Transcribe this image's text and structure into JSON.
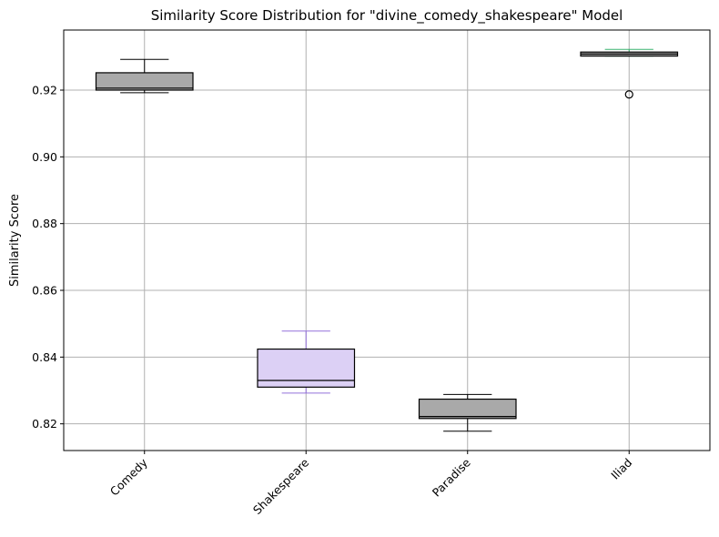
{
  "chart_data": {
    "type": "box",
    "title": "Similarity Score Distribution for \"divine_comedy_shakespeare\" Model",
    "ylabel": "Similarity Score",
    "xlabel": "",
    "ylim": [
      0.812,
      0.938
    ],
    "yticks": [
      0.82,
      0.84,
      0.86,
      0.88,
      0.9,
      0.92
    ],
    "ytick_labels": [
      "0.82",
      "0.84",
      "0.86",
      "0.88",
      "0.90",
      "0.92"
    ],
    "grid": true,
    "categories": [
      "Comedy",
      "Shakespeare",
      "Paradise",
      "Iliad"
    ],
    "boxes": [
      {
        "category": "Comedy",
        "whislo": 0.9192,
        "q1": 0.92,
        "med": 0.9206,
        "q3": 0.9252,
        "whishi": 0.9292,
        "fliers": [],
        "fill": "#a9a9a9",
        "edge": "#000000",
        "whisker_color": "#000000"
      },
      {
        "category": "Shakespeare",
        "whislo": 0.8292,
        "q1": 0.831,
        "med": 0.833,
        "q3": 0.8424,
        "whishi": 0.8478,
        "fliers": [],
        "fill": "#dcd0f5",
        "edge": "#000000",
        "whisker_color": "#9370db"
      },
      {
        "category": "Paradise",
        "whislo": 0.8178,
        "q1": 0.8216,
        "med": 0.8222,
        "q3": 0.8274,
        "whishi": 0.8288,
        "fliers": [],
        "fill": "#a9a9a9",
        "edge": "#000000",
        "whisker_color": "#000000"
      },
      {
        "category": "Iliad",
        "whislo": 0.9302,
        "q1": 0.9302,
        "med": 0.9308,
        "q3": 0.9314,
        "whishi": 0.9322,
        "fliers": [
          0.9187
        ],
        "fill": "#a9a9a9",
        "edge": "#000000",
        "whisker_color": "#3cb371"
      }
    ]
  }
}
